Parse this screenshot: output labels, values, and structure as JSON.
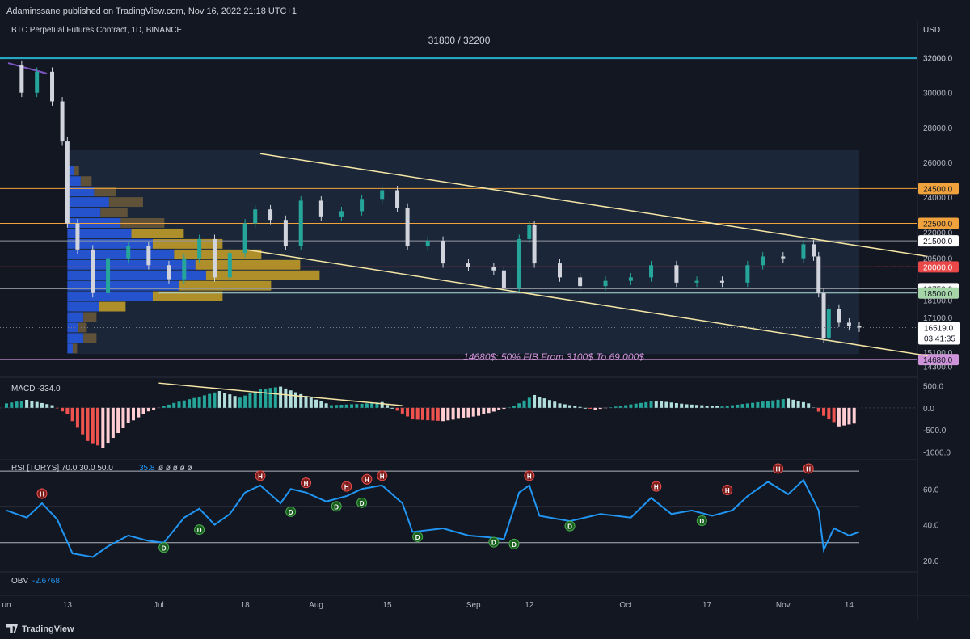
{
  "header": {
    "publisher": "Adaminssane published on TradingView.com, Nov 16, 2022 21:18 UTC+1"
  },
  "footer": {
    "brand": "TradingView"
  },
  "colors": {
    "bg": "#131722",
    "bull": "#26a69a",
    "bear": "#d1d4dc",
    "resistance": "#f0a33c",
    "support": "#e94748",
    "fib": "#ce93d8",
    "channel": "#f5e6a6",
    "teal_line": "#26a6c0",
    "rsi": "#2196f3"
  },
  "chart_data": [
    {
      "type": "candlestick",
      "title": "BTC Perpetual Futures Contract, 1D, BINANCE",
      "currency": "USD",
      "band_label": "31800 / 32200",
      "fib_label": "14680$: 50% FIB From 3100$ To 69.000$",
      "ylim": [
        13900,
        33000
      ],
      "y_ticks": [
        "32000.0",
        "30000.0",
        "28000.0",
        "26000.0",
        "24000.0",
        "22000.0",
        "20500.0",
        "18100.0",
        "17100.0",
        "15100.0",
        "14300.0"
      ],
      "x_ticks": [
        {
          "label": "un",
          "date": "2022-06-01"
        },
        {
          "label": "13",
          "date": "2022-06-13"
        },
        {
          "label": "Jul",
          "date": "2022-07-01"
        },
        {
          "label": "18",
          "date": "2022-07-18"
        },
        {
          "label": "Aug",
          "date": "2022-08-01"
        },
        {
          "label": "15",
          "date": "2022-08-15"
        },
        {
          "label": "Sep",
          "date": "2022-09-01"
        },
        {
          "label": "12",
          "date": "2022-09-12"
        },
        {
          "label": "Oct",
          "date": "2022-10-01"
        },
        {
          "label": "17",
          "date": "2022-10-17"
        },
        {
          "label": "Nov",
          "date": "2022-11-01"
        },
        {
          "label": "14",
          "date": "2022-11-14"
        }
      ],
      "levels": [
        {
          "value": 32000,
          "label": "32000.0",
          "kind": "band"
        },
        {
          "value": 24500,
          "label": "24500.0",
          "kind": "resistance"
        },
        {
          "value": 22500,
          "label": "22500.0",
          "kind": "resistance"
        },
        {
          "value": 21500,
          "label": "21500.0",
          "kind": "minor"
        },
        {
          "value": 20000,
          "label": "20000.0",
          "kind": "support"
        },
        {
          "value": 18750,
          "label": "18750.0",
          "kind": "minor"
        },
        {
          "value": 18500,
          "label": "18500.0",
          "kind": "green"
        },
        {
          "value": 14680,
          "label": "14680.0",
          "kind": "fib"
        }
      ],
      "last_price": {
        "value": 16519,
        "label": "16519.0",
        "countdown": "03:41:35"
      },
      "channel": [
        {
          "from": {
            "date": "2022-07-21",
            "price": 26500
          },
          "to": {
            "date": "2022-11-18",
            "price": 20600
          }
        },
        {
          "from": {
            "date": "2022-07-18",
            "price": 21000
          },
          "to": {
            "date": "2022-11-18",
            "price": 14900
          }
        }
      ],
      "closes": [
        {
          "date": "2022-06-01",
          "c": 31600
        },
        {
          "date": "2022-06-04",
          "c": 30000
        },
        {
          "date": "2022-06-07",
          "c": 31200
        },
        {
          "date": "2022-06-10",
          "c": 29500
        },
        {
          "date": "2022-06-12",
          "c": 27200
        },
        {
          "date": "2022-06-13",
          "c": 22500
        },
        {
          "date": "2022-06-15",
          "c": 21000
        },
        {
          "date": "2022-06-18",
          "c": 18500
        },
        {
          "date": "2022-06-21",
          "c": 20500
        },
        {
          "date": "2022-06-25",
          "c": 21200
        },
        {
          "date": "2022-06-29",
          "c": 20100
        },
        {
          "date": "2022-07-03",
          "c": 19300
        },
        {
          "date": "2022-07-06",
          "c": 20500
        },
        {
          "date": "2022-07-09",
          "c": 21600
        },
        {
          "date": "2022-07-12",
          "c": 19400
        },
        {
          "date": "2022-07-15",
          "c": 20800
        },
        {
          "date": "2022-07-18",
          "c": 22500
        },
        {
          "date": "2022-07-20",
          "c": 23300
        },
        {
          "date": "2022-07-23",
          "c": 22700
        },
        {
          "date": "2022-07-26",
          "c": 21200
        },
        {
          "date": "2022-07-29",
          "c": 23800
        },
        {
          "date": "2022-08-02",
          "c": 22900
        },
        {
          "date": "2022-08-06",
          "c": 23200
        },
        {
          "date": "2022-08-10",
          "c": 23900
        },
        {
          "date": "2022-08-14",
          "c": 24400
        },
        {
          "date": "2022-08-17",
          "c": 23400
        },
        {
          "date": "2022-08-19",
          "c": 21200
        },
        {
          "date": "2022-08-23",
          "c": 21500
        },
        {
          "date": "2022-08-26",
          "c": 20200
        },
        {
          "date": "2022-08-31",
          "c": 20000
        },
        {
          "date": "2022-09-05",
          "c": 19800
        },
        {
          "date": "2022-09-07",
          "c": 18800
        },
        {
          "date": "2022-09-10",
          "c": 21600
        },
        {
          "date": "2022-09-12",
          "c": 22400
        },
        {
          "date": "2022-09-13",
          "c": 20200
        },
        {
          "date": "2022-09-18",
          "c": 19400
        },
        {
          "date": "2022-09-22",
          "c": 18900
        },
        {
          "date": "2022-09-27",
          "c": 19200
        },
        {
          "date": "2022-10-02",
          "c": 19400
        },
        {
          "date": "2022-10-06",
          "c": 20100
        },
        {
          "date": "2022-10-11",
          "c": 19100
        },
        {
          "date": "2022-10-15",
          "c": 19200
        },
        {
          "date": "2022-10-20",
          "c": 19100
        },
        {
          "date": "2022-10-25",
          "c": 20100
        },
        {
          "date": "2022-10-28",
          "c": 20600
        },
        {
          "date": "2022-11-01",
          "c": 20500
        },
        {
          "date": "2022-11-05",
          "c": 21300
        },
        {
          "date": "2022-11-07",
          "c": 20600
        },
        {
          "date": "2022-11-08",
          "c": 18500
        },
        {
          "date": "2022-11-09",
          "c": 15900
        },
        {
          "date": "2022-11-10",
          "c": 17600
        },
        {
          "date": "2022-11-12",
          "c": 16800
        },
        {
          "date": "2022-11-14",
          "c": 16600
        },
        {
          "date": "2022-11-16",
          "c": 16519
        }
      ],
      "volume_profile_note": "Volume profile histogram drawn on the left side from Jun 13 to Jul 18 range."
    },
    {
      "type": "histogram",
      "title": "MACD",
      "value_label": "-334.0",
      "y_ticks": [
        "500.0",
        "0.0",
        "-500.0",
        "-1000.0"
      ],
      "ylim": [
        -1100,
        600
      ],
      "series": [
        {
          "date": "2022-06-01",
          "v": 100
        },
        {
          "date": "2022-06-05",
          "v": 180
        },
        {
          "date": "2022-06-10",
          "v": 60
        },
        {
          "date": "2022-06-13",
          "v": -150
        },
        {
          "date": "2022-06-17",
          "v": -750
        },
        {
          "date": "2022-06-20",
          "v": -900
        },
        {
          "date": "2022-06-25",
          "v": -350
        },
        {
          "date": "2022-06-29",
          "v": -80
        },
        {
          "date": "2022-07-04",
          "v": 110
        },
        {
          "date": "2022-07-09",
          "v": 250
        },
        {
          "date": "2022-07-13",
          "v": 380
        },
        {
          "date": "2022-07-17",
          "v": 230
        },
        {
          "date": "2022-07-21",
          "v": 420
        },
        {
          "date": "2022-07-25",
          "v": 480
        },
        {
          "date": "2022-07-29",
          "v": 310
        },
        {
          "date": "2022-08-04",
          "v": 60
        },
        {
          "date": "2022-08-10",
          "v": 90
        },
        {
          "date": "2022-08-14",
          "v": 130
        },
        {
          "date": "2022-08-20",
          "v": -260
        },
        {
          "date": "2022-08-26",
          "v": -300
        },
        {
          "date": "2022-09-02",
          "v": -180
        },
        {
          "date": "2022-09-09",
          "v": 40
        },
        {
          "date": "2022-09-13",
          "v": 290
        },
        {
          "date": "2022-09-18",
          "v": 100
        },
        {
          "date": "2022-09-25",
          "v": -40
        },
        {
          "date": "2022-10-01",
          "v": 60
        },
        {
          "date": "2022-10-07",
          "v": 160
        },
        {
          "date": "2022-10-13",
          "v": 80
        },
        {
          "date": "2022-10-20",
          "v": 30
        },
        {
          "date": "2022-10-28",
          "v": 140
        },
        {
          "date": "2022-11-02",
          "v": 210
        },
        {
          "date": "2022-11-06",
          "v": 100
        },
        {
          "date": "2022-11-09",
          "v": -180
        },
        {
          "date": "2022-11-12",
          "v": -420
        },
        {
          "date": "2022-11-16",
          "v": -334
        }
      ]
    },
    {
      "type": "line",
      "title": "RSI [TORYS]",
      "params": "70.0 30.0 50.0",
      "value_label": "35.8",
      "extra": "ø ø ø ø ø",
      "y_ticks": [
        "60.0",
        "40.0",
        "20.0"
      ],
      "ylim": [
        15,
        75
      ],
      "bands": [
        70,
        50,
        30
      ],
      "series": [
        {
          "date": "2022-06-01",
          "v": 48
        },
        {
          "date": "2022-06-05",
          "v": 44
        },
        {
          "date": "2022-06-08",
          "v": 52
        },
        {
          "date": "2022-06-11",
          "v": 43
        },
        {
          "date": "2022-06-14",
          "v": 24
        },
        {
          "date": "2022-06-18",
          "v": 22
        },
        {
          "date": "2022-06-21",
          "v": 28
        },
        {
          "date": "2022-06-25",
          "v": 34
        },
        {
          "date": "2022-06-29",
          "v": 31
        },
        {
          "date": "2022-07-02",
          "v": 30
        },
        {
          "date": "2022-07-06",
          "v": 44
        },
        {
          "date": "2022-07-09",
          "v": 49
        },
        {
          "date": "2022-07-12",
          "v": 40
        },
        {
          "date": "2022-07-15",
          "v": 46
        },
        {
          "date": "2022-07-18",
          "v": 58
        },
        {
          "date": "2022-07-21",
          "v": 62
        },
        {
          "date": "2022-07-25",
          "v": 52
        },
        {
          "date": "2022-07-27",
          "v": 60
        },
        {
          "date": "2022-07-30",
          "v": 58
        },
        {
          "date": "2022-08-03",
          "v": 53
        },
        {
          "date": "2022-08-07",
          "v": 56
        },
        {
          "date": "2022-08-10",
          "v": 60
        },
        {
          "date": "2022-08-14",
          "v": 62
        },
        {
          "date": "2022-08-18",
          "v": 52
        },
        {
          "date": "2022-08-20",
          "v": 36
        },
        {
          "date": "2022-08-26",
          "v": 38
        },
        {
          "date": "2022-08-31",
          "v": 34
        },
        {
          "date": "2022-09-04",
          "v": 33
        },
        {
          "date": "2022-09-07",
          "v": 32
        },
        {
          "date": "2022-09-10",
          "v": 58
        },
        {
          "date": "2022-09-12",
          "v": 62
        },
        {
          "date": "2022-09-14",
          "v": 45
        },
        {
          "date": "2022-09-20",
          "v": 42
        },
        {
          "date": "2022-09-26",
          "v": 46
        },
        {
          "date": "2022-10-02",
          "v": 44
        },
        {
          "date": "2022-10-06",
          "v": 55
        },
        {
          "date": "2022-10-10",
          "v": 46
        },
        {
          "date": "2022-10-14",
          "v": 48
        },
        {
          "date": "2022-10-18",
          "v": 45
        },
        {
          "date": "2022-10-22",
          "v": 48
        },
        {
          "date": "2022-10-25",
          "v": 56
        },
        {
          "date": "2022-10-29",
          "v": 64
        },
        {
          "date": "2022-11-02",
          "v": 57
        },
        {
          "date": "2022-11-05",
          "v": 65
        },
        {
          "date": "2022-11-08",
          "v": 48
        },
        {
          "date": "2022-11-09",
          "v": 26
        },
        {
          "date": "2022-11-11",
          "v": 38
        },
        {
          "date": "2022-11-14",
          "v": 34
        },
        {
          "date": "2022-11-16",
          "v": 36
        }
      ],
      "markers": [
        {
          "date": "2022-06-08",
          "type": "H",
          "v": 52
        },
        {
          "date": "2022-07-02",
          "type": "D",
          "v": 30
        },
        {
          "date": "2022-07-09",
          "type": "D",
          "v": 40
        },
        {
          "date": "2022-07-21",
          "type": "H",
          "v": 62
        },
        {
          "date": "2022-07-27",
          "type": "D",
          "v": 50
        },
        {
          "date": "2022-07-30",
          "type": "H",
          "v": 58
        },
        {
          "date": "2022-08-05",
          "type": "D",
          "v": 53
        },
        {
          "date": "2022-08-07",
          "type": "H",
          "v": 56
        },
        {
          "date": "2022-08-10",
          "type": "D",
          "v": 55
        },
        {
          "date": "2022-08-11",
          "type": "H",
          "v": 60
        },
        {
          "date": "2022-08-14",
          "type": "H",
          "v": 62
        },
        {
          "date": "2022-08-21",
          "type": "D",
          "v": 36
        },
        {
          "date": "2022-09-05",
          "type": "D",
          "v": 33
        },
        {
          "date": "2022-09-09",
          "type": "D",
          "v": 32
        },
        {
          "date": "2022-09-12",
          "type": "H",
          "v": 62
        },
        {
          "date": "2022-09-20",
          "type": "D",
          "v": 42
        },
        {
          "date": "2022-10-07",
          "type": "H",
          "v": 56
        },
        {
          "date": "2022-10-16",
          "type": "D",
          "v": 45
        },
        {
          "date": "2022-10-21",
          "type": "H",
          "v": 54
        },
        {
          "date": "2022-10-31",
          "type": "H",
          "v": 66
        },
        {
          "date": "2022-11-06",
          "type": "H",
          "v": 66
        }
      ]
    },
    {
      "type": "indicator",
      "title": "OBV",
      "value_label": "-2.6768"
    }
  ]
}
